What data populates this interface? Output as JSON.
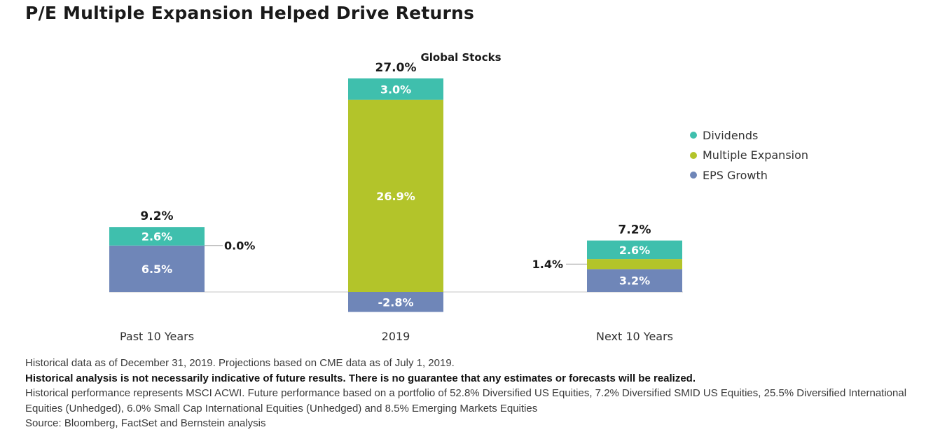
{
  "title": "P/E Multiple Expansion Helped Drive Returns",
  "chart_data": {
    "type": "bar",
    "stacked": true,
    "subtitle": "Global Stocks",
    "categories": [
      "Past 10 Years",
      "2019",
      "Next 10 Years"
    ],
    "totals": [
      "9.2%",
      "27.0%",
      "7.2%"
    ],
    "series": [
      {
        "name": "EPS Growth",
        "color": "#6f86b8",
        "values": [
          6.5,
          -2.8,
          3.2
        ],
        "labels": [
          "6.5%",
          "-2.8%",
          "3.2%"
        ]
      },
      {
        "name": "Multiple Expansion",
        "color": "#b3c42a",
        "values": [
          0.0,
          26.9,
          1.4
        ],
        "labels": [
          "0.0%",
          "26.9%",
          "1.4%"
        ]
      },
      {
        "name": "Dividends",
        "color": "#3fbfad",
        "values": [
          2.6,
          3.0,
          2.6
        ],
        "labels": [
          "2.6%",
          "3.0%",
          "2.6%"
        ]
      }
    ],
    "legend_order": [
      "Dividends",
      "Multiple Expansion",
      "EPS Growth"
    ],
    "legend_position": "right",
    "grid": false
  },
  "footnotes": {
    "line1": "Historical data as of December 31, 2019. Projections based on CME data as of July 1, 2019.",
    "line2": "Historical analysis is not necessarily indicative of future results. There is no guarantee that any estimates or forecasts will be realized.",
    "line3": "Historical performance represents MSCI ACWI. Future performance based on a portfolio of 52.8% Diversified US Equities, 7.2% Diversified SMID US Equities, 25.5% Diversified International Equities (Unhedged), 6.0% Small Cap International Equities (Unhedged) and 8.5% Emerging Markets Equities",
    "line4": "Source: Bloomberg, FactSet and Bernstein analysis"
  }
}
